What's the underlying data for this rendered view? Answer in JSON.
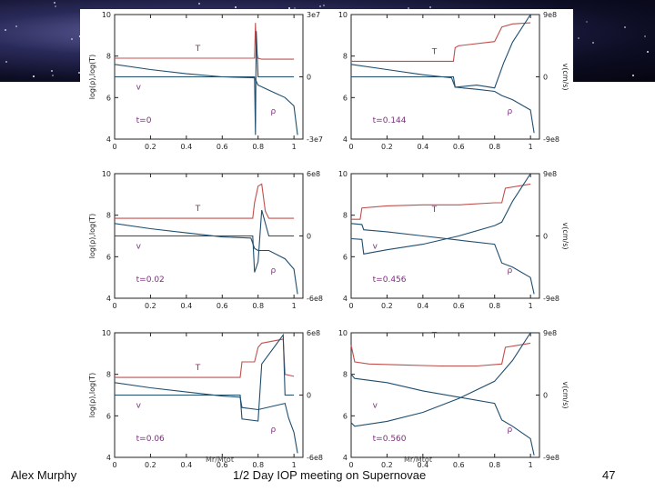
{
  "footer": {
    "author": "Alex Murphy",
    "event": "1/2 Day IOP meeting on Supernovae",
    "page_number": "47"
  },
  "colors": {
    "temperature": "#c0504d",
    "velocity": "#1f4e6e",
    "density": "#1f4e6e",
    "axis": "#222222",
    "label_T": "#8b2f6b",
    "label_rho_v": "#7a2f7a"
  },
  "chart_data": [
    {
      "type": "line",
      "panel": "t=0",
      "time_label": "t=0",
      "left_ticks": [
        "4",
        "6",
        "8",
        "10"
      ],
      "right_ticks": [
        "-3e7",
        "0",
        "3e7"
      ],
      "x_ticks": [
        "0",
        "0.2",
        "0.4",
        "0.6",
        "0.8",
        "1"
      ],
      "ylim_left": [
        4,
        10
      ],
      "ylim_right": [
        -30000000.0,
        30000000.0
      ],
      "xlim": [
        0,
        1.05
      ],
      "ylabel_left": "log(ρ),log(T)",
      "ylabel_right": "",
      "series": [
        {
          "name": "T",
          "x": [
            0,
            0.78,
            0.785,
            0.79,
            0.8,
            0.82,
            0.86,
            0.95,
            1.0
          ],
          "y": [
            7.9,
            7.9,
            9.6,
            8.2,
            7.9,
            7.85,
            7.85,
            7.85,
            7.85
          ]
        },
        {
          "name": "v",
          "x": [
            0,
            0.78,
            0.785,
            0.79,
            0.8,
            0.82,
            1.0
          ],
          "y": [
            0,
            0,
            -28000000.0,
            22000000.0,
            0,
            0,
            0
          ]
        },
        {
          "name": "ρ",
          "x": [
            0,
            0.2,
            0.4,
            0.6,
            0.78,
            0.8,
            0.85,
            0.9,
            0.95,
            1.0,
            1.02
          ],
          "y": [
            7.6,
            7.35,
            7.15,
            7.0,
            6.95,
            6.6,
            6.4,
            6.2,
            6.0,
            5.6,
            4.2
          ]
        }
      ],
      "labels": {
        "T": "T",
        "v": "v",
        "rho": "ρ"
      }
    },
    {
      "type": "line",
      "panel": "t=0.144",
      "time_label": "t=0.144",
      "left_ticks": [
        "4",
        "6",
        "8",
        "10"
      ],
      "right_ticks": [
        "-9e8",
        "0",
        "9e8"
      ],
      "x_ticks": [
        "0",
        "0.2",
        "0.4",
        "0.6",
        "0.8",
        "1"
      ],
      "ylim_left": [
        4,
        10
      ],
      "ylim_right": [
        -900000000.0,
        900000000.0
      ],
      "xlim": [
        0,
        1.05
      ],
      "ylabel_left": "",
      "ylabel_right": "v(cm/s)",
      "series": [
        {
          "name": "T",
          "x": [
            0,
            0.57,
            0.58,
            0.6,
            0.8,
            0.84,
            0.9,
            1.0
          ],
          "y": [
            7.75,
            7.75,
            8.4,
            8.5,
            8.7,
            9.4,
            9.55,
            9.6
          ]
        },
        {
          "name": "v",
          "x": [
            0,
            0.57,
            0.58,
            0.7,
            0.8,
            0.85,
            0.9,
            1.0
          ],
          "y": [
            0,
            0,
            -150000000.0,
            -120000000.0,
            -160000000.0,
            200000000.0,
            500000000.0,
            900000000.0
          ]
        },
        {
          "name": "ρ",
          "x": [
            0,
            0.2,
            0.4,
            0.56,
            0.58,
            0.7,
            0.8,
            0.84,
            0.9,
            1.0,
            1.02
          ],
          "y": [
            7.6,
            7.35,
            7.1,
            6.95,
            6.5,
            6.4,
            6.3,
            6.1,
            5.9,
            5.4,
            4.3
          ]
        }
      ],
      "labels": {
        "T": "T",
        "v": "",
        "rho": "ρ"
      }
    },
    {
      "type": "line",
      "panel": "t=0.02",
      "time_label": "t=0.02",
      "left_ticks": [
        "4",
        "6",
        "8",
        "10"
      ],
      "right_ticks": [
        "-6e8",
        "0",
        "6e8"
      ],
      "x_ticks": [
        "0",
        "0.2",
        "0.4",
        "0.6",
        "0.8",
        "1"
      ],
      "ylim_left": [
        4,
        10
      ],
      "ylim_right": [
        -600000000.0,
        600000000.0
      ],
      "xlim": [
        0,
        1.05
      ],
      "ylabel_left": "log(ρ),log(T)",
      "ylabel_right": "",
      "series": [
        {
          "name": "T",
          "x": [
            0,
            0.77,
            0.78,
            0.8,
            0.82,
            0.84,
            0.86,
            1.0
          ],
          "y": [
            7.85,
            7.85,
            8.6,
            9.4,
            9.5,
            8.2,
            7.85,
            7.85
          ]
        },
        {
          "name": "v",
          "x": [
            0,
            0.77,
            0.78,
            0.8,
            0.82,
            0.86,
            1.0
          ],
          "y": [
            0,
            0,
            -350000000.0,
            -250000000.0,
            250000000.0,
            0,
            0
          ]
        },
        {
          "name": "ρ",
          "x": [
            0,
            0.2,
            0.4,
            0.6,
            0.76,
            0.78,
            0.8,
            0.86,
            0.95,
            1.0,
            1.02
          ],
          "y": [
            7.6,
            7.35,
            7.15,
            6.95,
            6.9,
            6.4,
            6.3,
            6.3,
            5.9,
            5.4,
            4.2
          ]
        }
      ],
      "labels": {
        "T": "T",
        "v": "v",
        "rho": "ρ"
      }
    },
    {
      "type": "line",
      "panel": "t=0.456",
      "time_label": "t=0.456",
      "left_ticks": [
        "4",
        "6",
        "8",
        "10"
      ],
      "right_ticks": [
        "-9e8",
        "0",
        "9e8"
      ],
      "x_ticks": [
        "0",
        "0.2",
        "0.4",
        "0.6",
        "0.8",
        "1"
      ],
      "ylim_left": [
        4,
        10
      ],
      "ylim_right": [
        -900000000.0,
        900000000.0
      ],
      "xlim": [
        0,
        1.05
      ],
      "ylabel_left": "",
      "ylabel_right": "v(cm/s)",
      "series": [
        {
          "name": "T",
          "x": [
            0,
            0.05,
            0.06,
            0.2,
            0.4,
            0.6,
            0.8,
            0.84,
            0.86,
            1.0
          ],
          "y": [
            7.8,
            7.8,
            8.35,
            8.45,
            8.5,
            8.5,
            8.6,
            8.6,
            9.3,
            9.5
          ]
        },
        {
          "name": "v",
          "x": [
            0,
            0.06,
            0.07,
            0.2,
            0.4,
            0.6,
            0.8,
            0.84,
            0.9,
            1.0
          ],
          "y": [
            -40000000.0,
            -50000000.0,
            -260000000.0,
            -200000000.0,
            -120000000.0,
            0,
            150000000.0,
            200000000.0,
            500000000.0,
            900000000.0
          ]
        },
        {
          "name": "ρ",
          "x": [
            0,
            0.06,
            0.07,
            0.2,
            0.4,
            0.6,
            0.8,
            0.84,
            0.9,
            1.0,
            1.02
          ],
          "y": [
            7.6,
            7.55,
            7.3,
            7.2,
            7.0,
            6.8,
            6.6,
            5.7,
            5.5,
            5.0,
            4.2
          ]
        }
      ],
      "labels": {
        "T": "T",
        "v": "v",
        "rho": "ρ"
      }
    },
    {
      "type": "line",
      "panel": "t=0.06",
      "time_label": "t=0.06",
      "left_ticks": [
        "4",
        "6",
        "8",
        "10"
      ],
      "right_ticks": [
        "-6e8",
        "0",
        "6e8"
      ],
      "x_ticks": [
        "0",
        "0.2",
        "0.4",
        "0.6",
        "0.8",
        "1"
      ],
      "ylim_left": [
        4,
        10
      ],
      "ylim_right": [
        -600000000.0,
        600000000.0
      ],
      "xlim": [
        0,
        1.05
      ],
      "ylabel_left": "log(ρ),log(T)",
      "ylabel_right": "",
      "series": [
        {
          "name": "T",
          "x": [
            0,
            0.7,
            0.71,
            0.78,
            0.8,
            0.82,
            0.94,
            0.95,
            1.0
          ],
          "y": [
            7.85,
            7.85,
            8.6,
            8.6,
            9.3,
            9.5,
            9.7,
            8.0,
            7.9
          ]
        },
        {
          "name": "v",
          "x": [
            0,
            0.7,
            0.71,
            0.8,
            0.82,
            0.94,
            0.95,
            1.0
          ],
          "y": [
            0,
            0,
            -230000000.0,
            -250000000.0,
            300000000.0,
            580000000.0,
            0,
            0
          ]
        },
        {
          "name": "ρ",
          "x": [
            0,
            0.2,
            0.4,
            0.6,
            0.7,
            0.71,
            0.8,
            0.95,
            0.97,
            1.0,
            1.02
          ],
          "y": [
            7.6,
            7.35,
            7.15,
            6.95,
            6.9,
            6.4,
            6.3,
            6.6,
            5.9,
            5.2,
            4.2
          ]
        }
      ],
      "labels": {
        "T": "T",
        "v": "v",
        "rho": "ρ"
      }
    },
    {
      "type": "line",
      "panel": "t=0.560",
      "time_label": "t=0.560",
      "left_ticks": [
        "4",
        "6",
        "8",
        "10"
      ],
      "right_ticks": [
        "-9e8",
        "0",
        "9e8"
      ],
      "x_ticks": [
        "0",
        "0.2",
        "0.4",
        "0.6",
        "0.8",
        "1"
      ],
      "ylim_left": [
        4,
        10
      ],
      "ylim_right": [
        -900000000.0,
        900000000.0
      ],
      "xlim": [
        0,
        1.05
      ],
      "ylabel_left": "",
      "ylabel_right": "v(cm/s)",
      "series": [
        {
          "name": "T",
          "x": [
            0,
            0.02,
            0.1,
            0.3,
            0.5,
            0.7,
            0.84,
            0.86,
            1.0
          ],
          "y": [
            9.4,
            8.6,
            8.5,
            8.45,
            8.4,
            8.4,
            8.5,
            9.3,
            9.5
          ]
        },
        {
          "name": "v",
          "x": [
            0,
            0.02,
            0.2,
            0.4,
            0.6,
            0.8,
            0.9,
            1.0
          ],
          "y": [
            -400000000.0,
            -450000000.0,
            -380000000.0,
            -250000000.0,
            -50000000.0,
            200000000.0,
            500000000.0,
            900000000.0
          ]
        },
        {
          "name": "ρ",
          "x": [
            0,
            0.02,
            0.2,
            0.4,
            0.6,
            0.8,
            0.84,
            0.9,
            1.0,
            1.02
          ],
          "y": [
            8.0,
            7.8,
            7.6,
            7.2,
            6.9,
            6.6,
            5.8,
            5.5,
            4.9,
            4.1
          ]
        }
      ],
      "labels": {
        "T": "T",
        "v": "v",
        "rho": "ρ"
      }
    }
  ],
  "xlabel": "Mr/Mtot"
}
